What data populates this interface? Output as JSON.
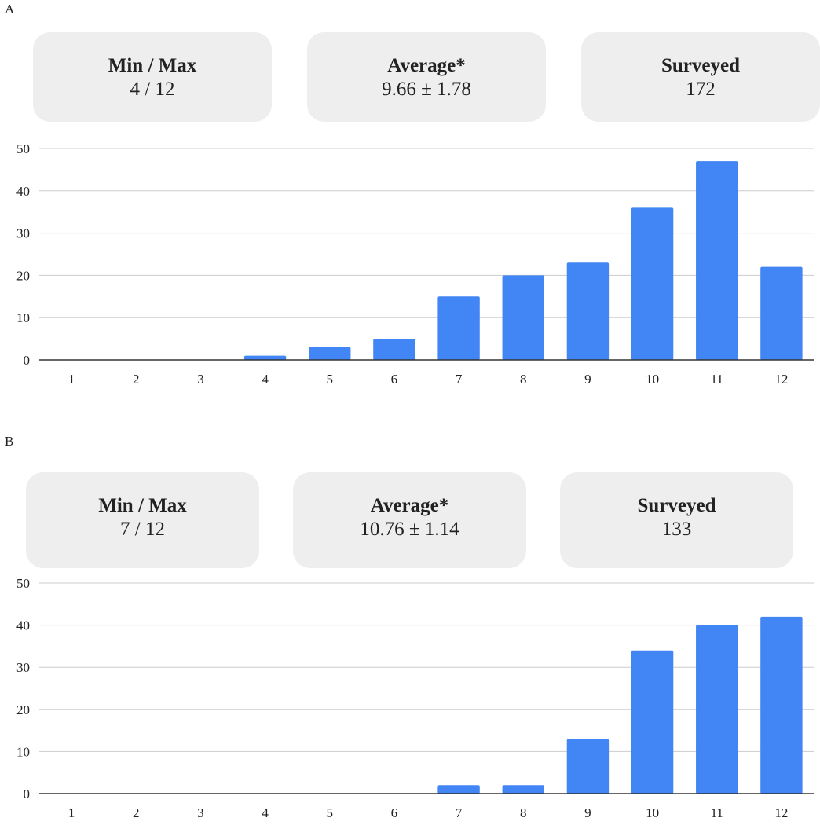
{
  "panels": [
    {
      "letter": "A",
      "stats": [
        {
          "title": "Min / Max",
          "value": "4 / 12"
        },
        {
          "title": "Average*",
          "value": "9.66 ± 1.78"
        },
        {
          "title": "Surveyed",
          "value": "172"
        }
      ]
    },
    {
      "letter": "B",
      "stats": [
        {
          "title": "Min / Max",
          "value": "7 / 12"
        },
        {
          "title": "Average*",
          "value": "10.76 ± 1.14"
        },
        {
          "title": "Surveyed",
          "value": "133"
        }
      ]
    }
  ],
  "colors": {
    "bar": "#4285f4",
    "grid": "#cccccc",
    "axis": "#333333",
    "card": "#eeeeee"
  },
  "chart_data": [
    {
      "type": "bar",
      "title": "",
      "xlabel": "",
      "ylabel": "",
      "categories": [
        "1",
        "2",
        "3",
        "4",
        "5",
        "6",
        "7",
        "8",
        "9",
        "10",
        "11",
        "12"
      ],
      "values": [
        0,
        0,
        0,
        1,
        3,
        5,
        15,
        20,
        23,
        36,
        47,
        22
      ],
      "ylim": [
        0,
        50
      ],
      "yticks": [
        0,
        10,
        20,
        30,
        40,
        50
      ],
      "grid": true
    },
    {
      "type": "bar",
      "title": "",
      "xlabel": "",
      "ylabel": "",
      "categories": [
        "1",
        "2",
        "3",
        "4",
        "5",
        "6",
        "7",
        "8",
        "9",
        "10",
        "11",
        "12"
      ],
      "values": [
        0,
        0,
        0,
        0,
        0,
        0,
        2,
        2,
        13,
        34,
        40,
        42
      ],
      "ylim": [
        0,
        50
      ],
      "yticks": [
        0,
        10,
        20,
        30,
        40,
        50
      ],
      "grid": true
    }
  ]
}
